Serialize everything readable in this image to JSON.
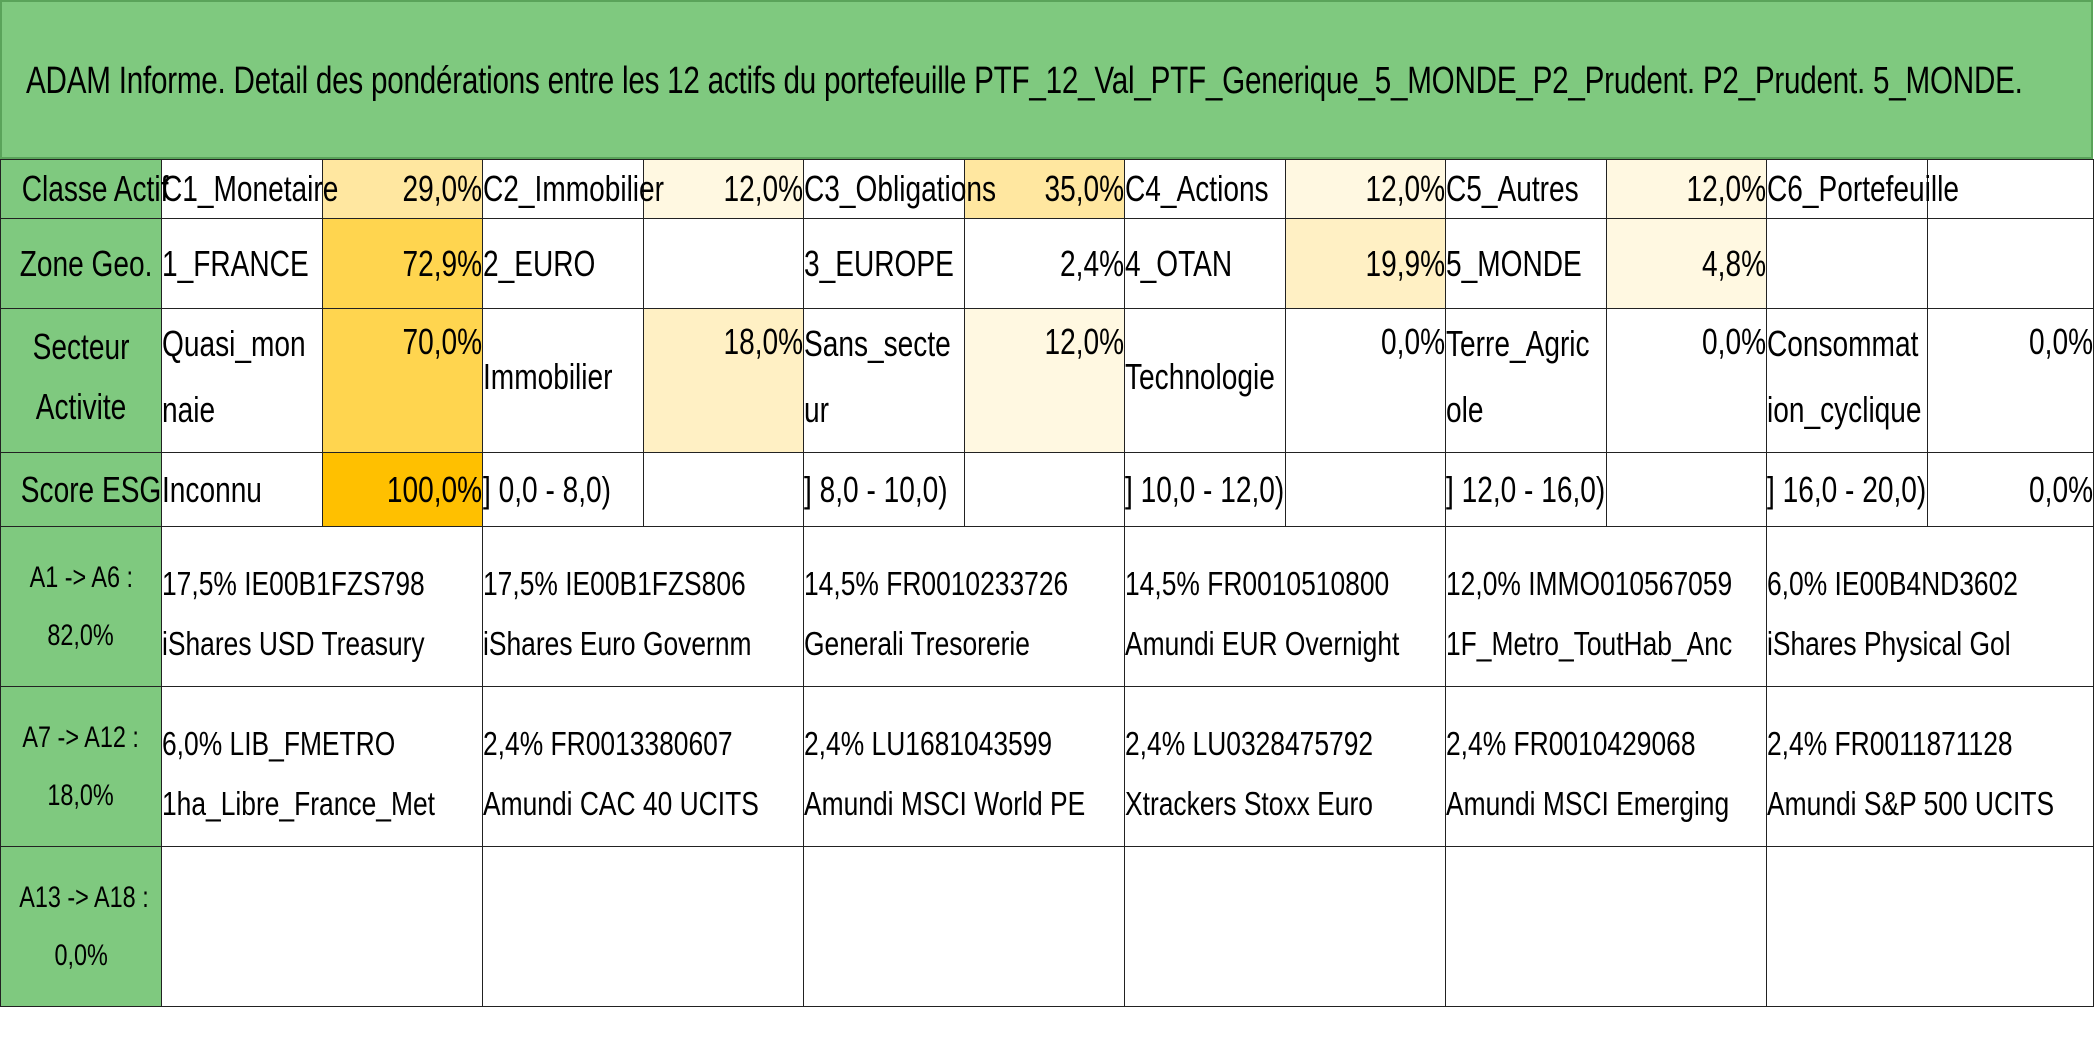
{
  "title": "ADAM Informe. Detail des pondérations entre les 12 actifs du portefeuille PTF_12_Val_PTF_Generique_5_MONDE_P2_Prudent. P2_Prudent. 5_MONDE.",
  "colors": {
    "header_green": "#7fc97f",
    "heat_1": "#fff8e1",
    "heat_2": "#fff0c4",
    "heat_3": "#ffe7a0",
    "heat_4": "#ffd54f",
    "heat_5": "#ffc000"
  },
  "rows": {
    "classe": {
      "label": "Classe Actif",
      "cells": [
        {
          "name": "C1_Monetaire",
          "pct": "29,0%",
          "level": 3
        },
        {
          "name": "C2_Immobilier",
          "pct": "12,0%",
          "level": 1
        },
        {
          "name": "C3_Obligations",
          "pct": "35,0%",
          "level": 3
        },
        {
          "name": "C4_Actions",
          "pct": "12,0%",
          "level": 1
        },
        {
          "name": "C5_Autres",
          "pct": "12,0%",
          "level": 1
        },
        {
          "name": "C6_Portefeuille",
          "pct": "",
          "level": 0
        }
      ]
    },
    "zone": {
      "label": "Zone Geo.",
      "cells": [
        {
          "name": "1_FRANCE",
          "pct": "72,9%",
          "level": 4
        },
        {
          "name": "2_EURO",
          "pct": "",
          "level": 0
        },
        {
          "name": "3_EUROPE",
          "pct": "2,4%",
          "level": 0
        },
        {
          "name": "4_OTAN",
          "pct": "19,9%",
          "level": 2
        },
        {
          "name": "5_MONDE",
          "pct": "4,8%",
          "level": 1
        },
        {
          "name": "",
          "pct": "",
          "level": 0
        }
      ]
    },
    "secteur": {
      "label_line1": "Secteur",
      "label_line2": "Activite",
      "cells": [
        {
          "name": "Quasi_monnaie",
          "pct": "70,0%",
          "level": 4
        },
        {
          "name": "Immobilier",
          "pct": "18,0%",
          "level": 2
        },
        {
          "name": "Sans_secteur",
          "pct": "12,0%",
          "level": 1
        },
        {
          "name": "Technologie",
          "pct": "0,0%",
          "level": 0
        },
        {
          "name": "Terre_Agricole",
          "pct": "0,0%",
          "level": 0
        },
        {
          "name": "Consommation_cyclique",
          "pct": "0,0%",
          "level": 0
        }
      ]
    },
    "esg": {
      "label": "Score ESG",
      "cells": [
        {
          "name": "Inconnu",
          "pct": "100,0%",
          "level": 5
        },
        {
          "name": "] 0,0 - 8,0)",
          "pct": "",
          "level": 0
        },
        {
          "name": "] 8,0 - 10,0)",
          "pct": "",
          "level": 0
        },
        {
          "name": "] 10,0 - 12,0)",
          "pct": "",
          "level": 0
        },
        {
          "name": "] 12,0 - 16,0)",
          "pct": "",
          "level": 0
        },
        {
          "name": "] 16,0 - 20,0)",
          "pct": "0,0%",
          "level": 0
        }
      ]
    }
  },
  "asset_groups": [
    {
      "label_line1": "A1 -> A6 :",
      "label_line2": "82,0%",
      "assets": [
        {
          "line1": "17,5% IE00B1FZS798",
          "line2": "iShares USD Treasury"
        },
        {
          "line1": "17,5% IE00B1FZS806",
          "line2": "iShares Euro Governm"
        },
        {
          "line1": "14,5% FR0010233726",
          "line2": "Generali Tresorerie"
        },
        {
          "line1": "14,5% FR0010510800",
          "line2": "Amundi EUR Overnight"
        },
        {
          "line1": "12,0% IMMO010567059",
          "line2": "1F_Metro_ToutHab_Anc"
        },
        {
          "line1": "6,0% IE00B4ND3602",
          "line2": "iShares Physical Gol"
        }
      ]
    },
    {
      "label_line1": "A7 -> A12 :",
      "label_line2": "18,0%",
      "assets": [
        {
          "line1": "6,0% LIB_FMETRO",
          "line2": "1ha_Libre_France_Met"
        },
        {
          "line1": "2,4% FR0013380607",
          "line2": "Amundi CAC 40 UCITS"
        },
        {
          "line1": "2,4% LU1681043599",
          "line2": "Amundi MSCI World PE"
        },
        {
          "line1": "2,4% LU0328475792",
          "line2": "Xtrackers Stoxx Euro"
        },
        {
          "line1": "2,4% FR0010429068",
          "line2": "Amundi MSCI Emerging"
        },
        {
          "line1": "2,4% FR0011871128",
          "line2": "Amundi S&P 500 UCITS"
        }
      ]
    },
    {
      "label_line1": "A13 -> A18 :",
      "label_line2": "0,0%",
      "assets": [
        {
          "line1": "",
          "line2": ""
        },
        {
          "line1": "",
          "line2": ""
        },
        {
          "line1": "",
          "line2": ""
        },
        {
          "line1": "",
          "line2": ""
        },
        {
          "line1": "",
          "line2": ""
        },
        {
          "line1": "",
          "line2": ""
        }
      ]
    }
  ]
}
